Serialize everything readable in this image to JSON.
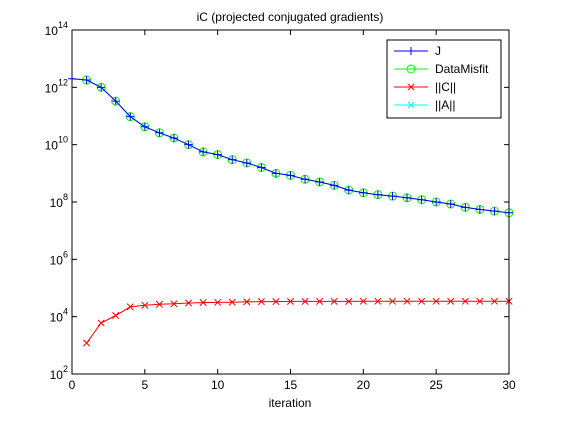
{
  "chart_data": {
    "type": "line",
    "title": "iC (projected conjugated gradients)",
    "xlabel": "iteration",
    "ylabel": "",
    "xlim": [
      0,
      30
    ],
    "ylim": [
      100,
      100000000000000
    ],
    "yscale": "log",
    "x_ticks": [
      0,
      5,
      10,
      15,
      20,
      25,
      30
    ],
    "y_ticks": [
      {
        "value": 100,
        "base": "10",
        "exp": "2"
      },
      {
        "value": 10000,
        "base": "10",
        "exp": "4"
      },
      {
        "value": 1000000,
        "base": "10",
        "exp": "6"
      },
      {
        "value": 100000000,
        "base": "10",
        "exp": "8"
      },
      {
        "value": 10000000000,
        "base": "10",
        "exp": "10"
      },
      {
        "value": 1000000000000,
        "base": "10",
        "exp": "12"
      },
      {
        "value": 100000000000000,
        "base": "10",
        "exp": "14"
      }
    ],
    "grid": false,
    "legend_position": "top-right",
    "series": [
      {
        "name": "J",
        "color": "#0000ff",
        "marker": "plus",
        "x": [
          0,
          1,
          2,
          3,
          4,
          5,
          6,
          7,
          8,
          9,
          10,
          11,
          12,
          13,
          14,
          15,
          16,
          17,
          18,
          19,
          20,
          21,
          22,
          23,
          24,
          25,
          26,
          27,
          28,
          29,
          30
        ],
        "values": [
          2000000000000,
          1800000000000,
          1000000000000,
          330000000000,
          95000000000,
          42000000000,
          26000000000,
          17000000000,
          10000000000,
          5600000000,
          4500000000,
          3000000000,
          2300000000,
          1600000000,
          1000000000,
          850000000,
          620000000,
          500000000,
          380000000,
          260000000,
          210000000,
          180000000,
          160000000,
          140000000,
          120000000,
          100000000,
          85000000,
          65000000,
          55000000,
          48000000,
          42000000
        ]
      },
      {
        "name": "DataMisfit",
        "color": "#00ff00",
        "marker": "circle",
        "x": [
          0,
          1,
          2,
          3,
          4,
          5,
          6,
          7,
          8,
          9,
          10,
          11,
          12,
          13,
          14,
          15,
          16,
          17,
          18,
          19,
          20,
          21,
          22,
          23,
          24,
          25,
          26,
          27,
          28,
          29,
          30
        ],
        "values": [
          2000000000000,
          1800000000000,
          1000000000000,
          330000000000,
          95000000000,
          42000000000,
          26000000000,
          17000000000,
          10000000000,
          5600000000,
          4500000000,
          3000000000,
          2300000000,
          1600000000,
          1000000000,
          850000000,
          620000000,
          500000000,
          380000000,
          260000000,
          210000000,
          180000000,
          160000000,
          140000000,
          120000000,
          100000000,
          85000000,
          65000000,
          55000000,
          48000000,
          42000000
        ]
      },
      {
        "name": "||C||",
        "color": "#ff0000",
        "marker": "x",
        "x": [
          1,
          2,
          3,
          4,
          5,
          6,
          7,
          8,
          9,
          10,
          11,
          12,
          13,
          14,
          15,
          16,
          17,
          18,
          19,
          20,
          21,
          22,
          23,
          24,
          25,
          26,
          27,
          28,
          29,
          30
        ],
        "values": [
          1200,
          6000,
          11000,
          22000,
          25000,
          27000,
          28000,
          30000,
          31000,
          31500,
          32000,
          33000,
          33500,
          33500,
          34000,
          34000,
          34000,
          34000,
          34000,
          34500,
          34500,
          34500,
          34500,
          34500,
          34500,
          34500,
          34500,
          34500,
          34500,
          34500
        ]
      },
      {
        "name": "||A||",
        "color": "#00ffff",
        "marker": "x",
        "x": [],
        "values": []
      }
    ]
  }
}
